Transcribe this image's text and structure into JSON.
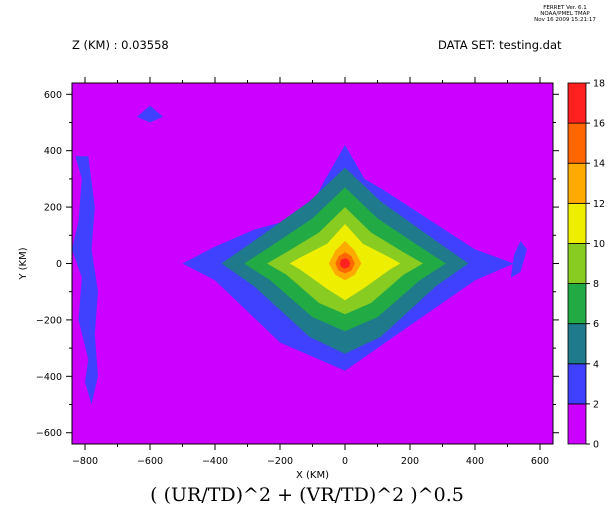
{
  "header": {
    "ferret_lines": [
      "FERRET Ver. 6.1",
      "NOAA/PMEL TMAP",
      "Nov 16 2009 15:21:17"
    ],
    "z_label": "Z (KM) : 0.03558",
    "dataset_label": "DATA SET: testing.dat"
  },
  "formula": "( (UR/TD)^2 + (VR/TD)^2 )^0.5",
  "colors": {
    "levels": [
      "#cc00ff",
      "#4040ff",
      "#1f7a8c",
      "#22aa44",
      "#88cc22",
      "#eeee00",
      "#ffaa00",
      "#ff6600",
      "#ff2020",
      "#aa0000"
    ]
  },
  "chart_data": {
    "type": "heatmap",
    "subtype": "filled-contour",
    "xlabel": "X (KM)",
    "ylabel": "Y (KM)",
    "xlim": [
      -840,
      640
    ],
    "ylim": [
      -640,
      640
    ],
    "x_ticks": [
      -800,
      -600,
      -400,
      -200,
      0,
      200,
      400,
      600
    ],
    "x_tick_labels": [
      "−800",
      "−600",
      "−400",
      "−200",
      "0",
      "200",
      "400",
      "600"
    ],
    "y_ticks": [
      -600,
      -400,
      -200,
      0,
      200,
      400,
      600
    ],
    "y_tick_labels": [
      "−600",
      "−400",
      "−200",
      "0",
      "200",
      "400",
      "600"
    ],
    "colorbar": {
      "levels": [
        0,
        2,
        4,
        6,
        8,
        10,
        12,
        14,
        16,
        18
      ],
      "labels": [
        "0",
        "2",
        "4",
        "6",
        "8",
        "10",
        "12",
        "14",
        "16",
        "18"
      ]
    },
    "contours": [
      {
        "level": 2,
        "points": [
          [
            -120,
            170
          ],
          [
            -60,
            300
          ],
          [
            0,
            420
          ],
          [
            60,
            300
          ],
          [
            120,
            260
          ],
          [
            400,
            50
          ],
          [
            520,
            0
          ],
          [
            400,
            -60
          ],
          [
            200,
            -220
          ],
          [
            0,
            -380
          ],
          [
            -200,
            -280
          ],
          [
            -400,
            -60
          ],
          [
            -500,
            0
          ],
          [
            -400,
            60
          ],
          [
            -280,
            120
          ]
        ]
      },
      {
        "level": 4,
        "points": [
          [
            -110,
            220
          ],
          [
            0,
            340
          ],
          [
            110,
            220
          ],
          [
            280,
            80
          ],
          [
            380,
            0
          ],
          [
            280,
            -80
          ],
          [
            110,
            -260
          ],
          [
            0,
            -320
          ],
          [
            -110,
            -260
          ],
          [
            -280,
            -80
          ],
          [
            -380,
            0
          ],
          [
            -280,
            80
          ]
        ]
      },
      {
        "level": 6,
        "points": [
          [
            -100,
            160
          ],
          [
            0,
            270
          ],
          [
            100,
            160
          ],
          [
            230,
            60
          ],
          [
            310,
            0
          ],
          [
            230,
            -60
          ],
          [
            100,
            -190
          ],
          [
            0,
            -240
          ],
          [
            -100,
            -190
          ],
          [
            -230,
            -60
          ],
          [
            -310,
            0
          ],
          [
            -230,
            60
          ]
        ]
      },
      {
        "level": 8,
        "points": [
          [
            -80,
            110
          ],
          [
            0,
            200
          ],
          [
            80,
            110
          ],
          [
            180,
            40
          ],
          [
            240,
            0
          ],
          [
            180,
            -40
          ],
          [
            80,
            -140
          ],
          [
            0,
            -180
          ],
          [
            -80,
            -140
          ],
          [
            -180,
            -40
          ],
          [
            -240,
            0
          ],
          [
            -180,
            40
          ]
        ]
      },
      {
        "level": 10,
        "points": [
          [
            -55,
            70
          ],
          [
            0,
            140
          ],
          [
            55,
            70
          ],
          [
            140,
            20
          ],
          [
            170,
            0
          ],
          [
            140,
            -20
          ],
          [
            55,
            -90
          ],
          [
            0,
            -130
          ],
          [
            -55,
            -90
          ],
          [
            -140,
            -20
          ],
          [
            -170,
            0
          ],
          [
            -140,
            20
          ]
        ]
      },
      {
        "level": 12,
        "points": [
          [
            -30,
            45
          ],
          [
            0,
            80
          ],
          [
            30,
            45
          ],
          [
            50,
            0
          ],
          [
            30,
            -40
          ],
          [
            0,
            -60
          ],
          [
            -30,
            -40
          ],
          [
            -50,
            0
          ]
        ]
      },
      {
        "level": 14,
        "points": [
          [
            -20,
            25
          ],
          [
            0,
            40
          ],
          [
            20,
            25
          ],
          [
            30,
            0
          ],
          [
            20,
            -25
          ],
          [
            0,
            -35
          ],
          [
            -20,
            -25
          ],
          [
            -30,
            0
          ]
        ]
      },
      {
        "level": 16,
        "points": [
          [
            -12,
            12
          ],
          [
            0,
            20
          ],
          [
            12,
            12
          ],
          [
            16,
            0
          ],
          [
            12,
            -12
          ],
          [
            0,
            -18
          ],
          [
            -12,
            -12
          ],
          [
            -16,
            0
          ]
        ]
      }
    ],
    "side_features": [
      {
        "level": 2,
        "points": [
          [
            -830,
            380
          ],
          [
            -810,
            300
          ],
          [
            -820,
            150
          ],
          [
            -840,
            50
          ],
          [
            -810,
            -50
          ],
          [
            -820,
            -200
          ],
          [
            -790,
            -340
          ],
          [
            -800,
            -420
          ],
          [
            -780,
            -500
          ],
          [
            -760,
            -400
          ],
          [
            -770,
            -250
          ],
          [
            -760,
            -100
          ],
          [
            -780,
            50
          ],
          [
            -770,
            200
          ],
          [
            -790,
            380
          ]
        ]
      },
      {
        "level": 2,
        "points": [
          [
            510,
            -50
          ],
          [
            540,
            -30
          ],
          [
            560,
            50
          ],
          [
            540,
            80
          ],
          [
            520,
            30
          ]
        ]
      },
      {
        "level": 2,
        "points": [
          [
            -600,
            560
          ],
          [
            -560,
            520
          ],
          [
            -600,
            500
          ],
          [
            -640,
            520
          ]
        ]
      }
    ]
  }
}
